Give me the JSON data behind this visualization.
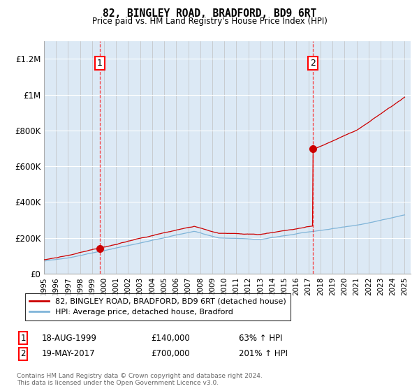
{
  "title": "82, BINGLEY ROAD, BRADFORD, BD9 6RT",
  "subtitle": "Price paid vs. HM Land Registry's House Price Index (HPI)",
  "ylim": [
    0,
    1300000
  ],
  "xlim_start": 1995.0,
  "xlim_end": 2025.5,
  "yticks": [
    0,
    200000,
    400000,
    600000,
    800000,
    1000000,
    1200000
  ],
  "ytick_labels": [
    "£0",
    "£200K",
    "£400K",
    "£600K",
    "£800K",
    "£1M",
    "£1.2M"
  ],
  "xticks": [
    1995,
    1996,
    1997,
    1998,
    1999,
    2000,
    2001,
    2002,
    2003,
    2004,
    2005,
    2006,
    2007,
    2008,
    2009,
    2010,
    2011,
    2012,
    2013,
    2014,
    2015,
    2016,
    2017,
    2018,
    2019,
    2020,
    2021,
    2022,
    2023,
    2024,
    2025
  ],
  "bg_color": "#dce9f5",
  "fig_bg": "#ffffff",
  "red_line_color": "#cc0000",
  "blue_line_color": "#7fb4d8",
  "sale1_x": 1999.625,
  "sale1_y": 140000,
  "sale2_x": 2017.375,
  "sale2_y": 700000,
  "legend_label1": "82, BINGLEY ROAD, BRADFORD, BD9 6RT (detached house)",
  "legend_label2": "HPI: Average price, detached house, Bradford",
  "annotation1_num": "1",
  "annotation1_date": "18-AUG-1999",
  "annotation1_price": "£140,000",
  "annotation1_hpi": "63% ↑ HPI",
  "annotation2_num": "2",
  "annotation2_date": "19-MAY-2017",
  "annotation2_price": "£700,000",
  "annotation2_hpi": "201% ↑ HPI",
  "footnote": "Contains HM Land Registry data © Crown copyright and database right 2024.\nThis data is licensed under the Open Government Licence v3.0."
}
